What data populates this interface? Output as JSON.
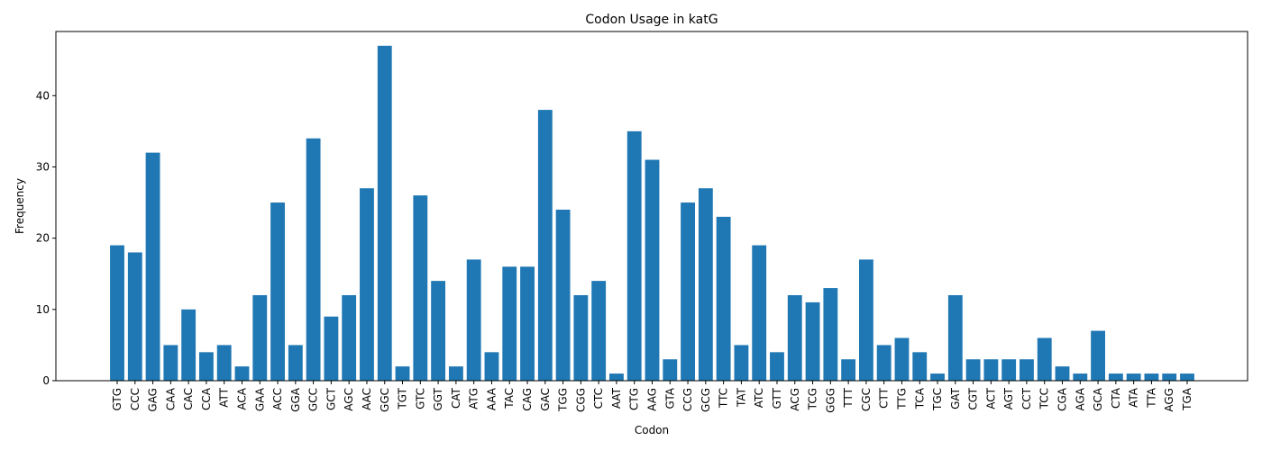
{
  "chart_data": {
    "type": "bar",
    "title": "Codon Usage in katG",
    "xlabel": "Codon",
    "ylabel": "Frequency",
    "ylim": [
      0,
      49
    ],
    "yticks": [
      0,
      10,
      20,
      30,
      40
    ],
    "bar_color": "#1f77b4",
    "grid": false,
    "categories": [
      "GTG",
      "CCC",
      "GAG",
      "CAA",
      "CAC",
      "CCA",
      "ATT",
      "ACA",
      "GAA",
      "ACC",
      "GGA",
      "GCC",
      "GCT",
      "AGC",
      "AAC",
      "GGC",
      "TGT",
      "GTC",
      "GGT",
      "CAT",
      "ATG",
      "AAA",
      "TAC",
      "CAG",
      "GAC",
      "TGG",
      "CGG",
      "CTC",
      "AAT",
      "CTG",
      "AAG",
      "GTA",
      "CCG",
      "GCG",
      "TTC",
      "TAT",
      "ATC",
      "GTT",
      "ACG",
      "TCG",
      "GGG",
      "TTT",
      "CGC",
      "CTT",
      "TTG",
      "TCA",
      "TGC",
      "GAT",
      "CGT",
      "ACT",
      "AGT",
      "CCT",
      "TCC",
      "CGA",
      "AGA",
      "GCA",
      "CTA",
      "ATA",
      "TTA",
      "AGG",
      "TGA"
    ],
    "values": [
      19,
      18,
      32,
      5,
      10,
      4,
      5,
      2,
      12,
      25,
      5,
      34,
      9,
      12,
      27,
      47,
      2,
      26,
      14,
      2,
      17,
      4,
      16,
      16,
      38,
      24,
      12,
      14,
      1,
      35,
      31,
      3,
      25,
      27,
      23,
      5,
      19,
      4,
      12,
      11,
      13,
      3,
      17,
      5,
      6,
      4,
      1,
      12,
      3,
      3,
      3,
      3,
      6,
      2,
      1,
      7,
      1,
      1,
      1,
      1,
      1
    ]
  }
}
